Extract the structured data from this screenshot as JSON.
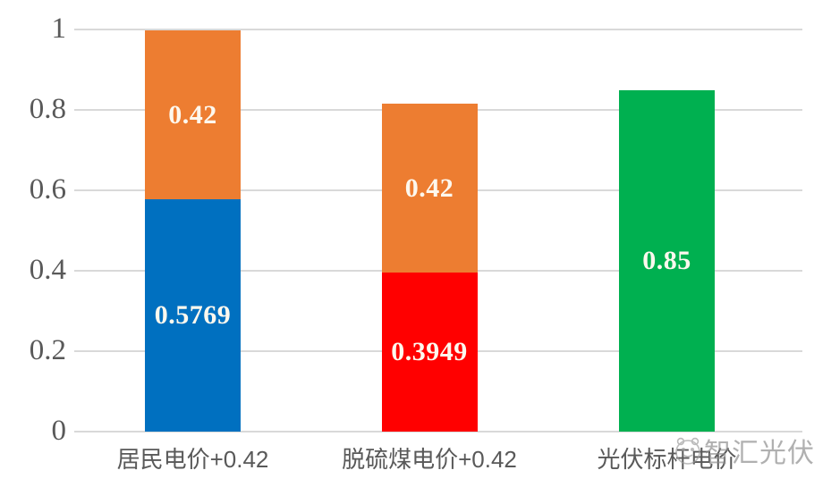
{
  "watermark": {
    "text": "智汇光伏",
    "logo_icon": "cartoon-face-logo-icon"
  },
  "chart_data": {
    "type": "bar",
    "stacked": true,
    "title": "",
    "xlabel": "",
    "ylabel": "",
    "ylim": [
      0,
      1
    ],
    "grid": true,
    "legend": "none",
    "y_ticks": [
      {
        "label": "1",
        "value": 1.0
      },
      {
        "label": "0.8",
        "value": 0.8
      },
      {
        "label": "0.6",
        "value": 0.6
      },
      {
        "label": "0.4",
        "value": 0.4
      },
      {
        "label": "0.2",
        "value": 0.2
      },
      {
        "label": "0",
        "value": 0.0
      }
    ],
    "categories": [
      "居民电价+0.42",
      "脱硫煤电价+0.42",
      "光伏标杆电价"
    ],
    "bars": [
      {
        "name": "residential-price-bar",
        "category": "居民电价+0.42",
        "segments": [
          {
            "name": "residential-tariff-segment",
            "value": 0.5769,
            "label": "0.5769",
            "color": "#0070C0"
          },
          {
            "name": "subsidy-segment",
            "value": 0.42,
            "label": "0.42",
            "color": "#ED7D31"
          }
        ]
      },
      {
        "name": "coal-price-bar",
        "category": "脱硫煤电价+0.42",
        "segments": [
          {
            "name": "coal-tariff-segment",
            "value": 0.3949,
            "label": "0.3949",
            "color": "#FF0000"
          },
          {
            "name": "subsidy-segment",
            "value": 0.42,
            "label": "0.42",
            "color": "#ED7D31"
          }
        ]
      },
      {
        "name": "pv-benchmark-bar",
        "category": "光伏标杆电价",
        "segments": [
          {
            "name": "pv-benchmark-tariff-segment",
            "value": 0.85,
            "label": "0.85",
            "color": "#00B050"
          }
        ]
      }
    ],
    "colors": {
      "blue": "#0070C0",
      "orange": "#ED7D31",
      "red": "#FF0000",
      "green": "#00B050",
      "gridline": "#D9D9D9",
      "axis_text": "#595959",
      "data_label_text": "#FDF8EE",
      "watermark_text": "#8C8C8C"
    }
  }
}
